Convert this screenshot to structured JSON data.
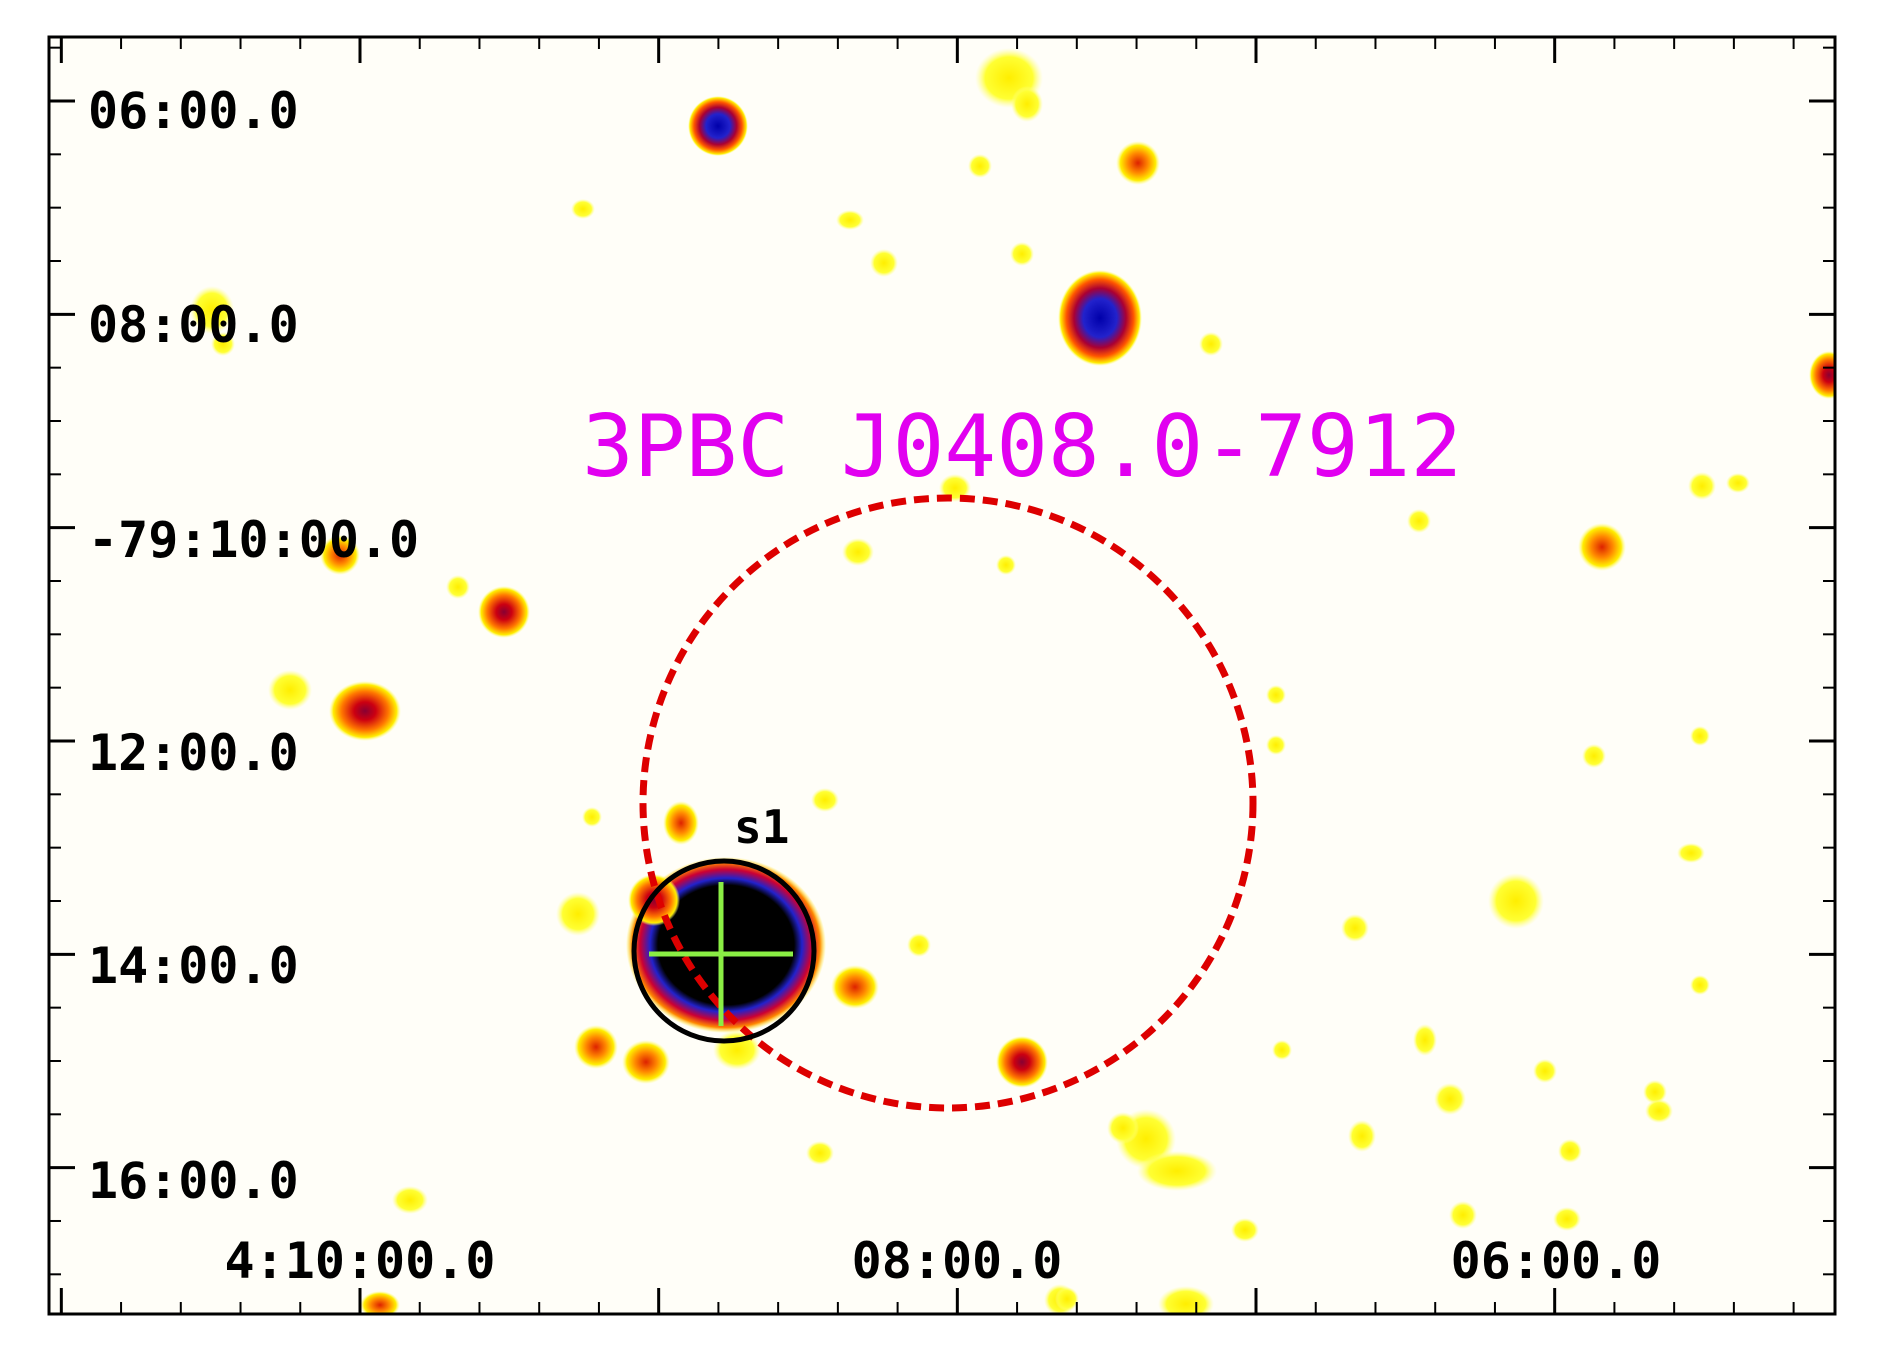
{
  "field": {
    "title": "3PBC J0408.0-7912",
    "source_label": "s1"
  },
  "axes": {
    "dec_labels": [
      "06:00.0",
      "08:00.0",
      "-79:10:00.0",
      "12:00.0",
      "14:00.0",
      "16:00.0"
    ],
    "ra_labels": [
      "4:10:00.0",
      "08:00.0",
      "06:00.0"
    ]
  },
  "colors": {
    "background": "#fffef8",
    "frame": "#000000",
    "title": "#e100f0",
    "error_circle": "#dd0000",
    "source_circle": "#000000",
    "crosshair": "#8aee44",
    "emission_faint": "#ffff00",
    "emission_mid": "#ff6600",
    "emission_bright": "#cc0022",
    "emission_peak": "#1a1acc",
    "emission_saturated": "#000000"
  }
}
